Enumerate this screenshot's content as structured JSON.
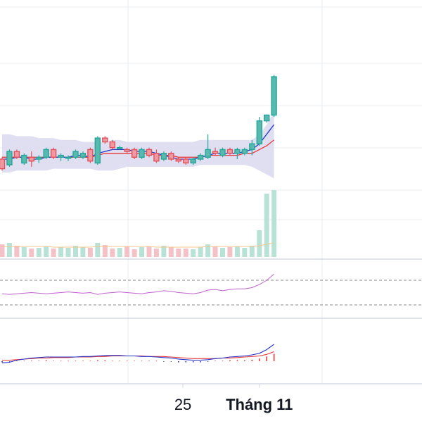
{
  "chart_data": {
    "type": "candlestick",
    "xaxis": {
      "tick_labels": [
        {
          "label": "25",
          "index": 24.6,
          "bold": false
        },
        {
          "label": "Tháng 11",
          "index": 35.0,
          "bold": true
        }
      ]
    },
    "price": {
      "ylim": [
        0,
        100
      ],
      "candles": [
        {
          "o": 50,
          "h": 51,
          "l": 44,
          "c": 45
        },
        {
          "o": 47,
          "h": 55,
          "l": 46,
          "c": 54
        },
        {
          "o": 54,
          "h": 55,
          "l": 50,
          "c": 51
        },
        {
          "o": 48,
          "h": 53,
          "l": 47,
          "c": 52
        },
        {
          "o": 51,
          "h": 54,
          "l": 46,
          "c": 49
        },
        {
          "o": 50,
          "h": 52,
          "l": 48,
          "c": 51
        },
        {
          "o": 51,
          "h": 56,
          "l": 50,
          "c": 55
        },
        {
          "o": 55,
          "h": 56,
          "l": 50,
          "c": 51
        },
        {
          "o": 51,
          "h": 53,
          "l": 49,
          "c": 52
        },
        {
          "o": 51,
          "h": 52,
          "l": 49,
          "c": 51
        },
        {
          "o": 51,
          "h": 55,
          "l": 50,
          "c": 54
        },
        {
          "o": 51,
          "h": 54,
          "l": 50,
          "c": 53
        },
        {
          "o": 55,
          "h": 56,
          "l": 48,
          "c": 49
        },
        {
          "o": 48,
          "h": 62,
          "l": 47,
          "c": 61
        },
        {
          "o": 61,
          "h": 62,
          "l": 58,
          "c": 59
        },
        {
          "o": 59,
          "h": 60,
          "l": 55,
          "c": 56
        },
        {
          "o": 56,
          "h": 57,
          "l": 55,
          "c": 56
        },
        {
          "o": 55,
          "h": 56,
          "l": 53,
          "c": 54
        },
        {
          "o": 55,
          "h": 56,
          "l": 50,
          "c": 51
        },
        {
          "o": 51,
          "h": 56,
          "l": 50,
          "c": 55
        },
        {
          "o": 55,
          "h": 56,
          "l": 51,
          "c": 52
        },
        {
          "o": 53,
          "h": 55,
          "l": 48,
          "c": 49
        },
        {
          "o": 50,
          "h": 54,
          "l": 49,
          "c": 53
        },
        {
          "o": 53,
          "h": 54,
          "l": 49,
          "c": 50
        },
        {
          "o": 50,
          "h": 51,
          "l": 48,
          "c": 49
        },
        {
          "o": 50,
          "h": 51,
          "l": 47,
          "c": 48
        },
        {
          "o": 48,
          "h": 51,
          "l": 47,
          "c": 50
        },
        {
          "o": 50,
          "h": 53,
          "l": 49,
          "c": 52
        },
        {
          "o": 51,
          "h": 63,
          "l": 50,
          "c": 55
        },
        {
          "o": 54,
          "h": 56,
          "l": 52,
          "c": 53
        },
        {
          "o": 52,
          "h": 56,
          "l": 51,
          "c": 55
        },
        {
          "o": 55,
          "h": 56,
          "l": 52,
          "c": 53
        },
        {
          "o": 53,
          "h": 56,
          "l": 50,
          "c": 55
        },
        {
          "o": 53,
          "h": 56,
          "l": 52,
          "c": 55
        },
        {
          "o": 55,
          "h": 60,
          "l": 52,
          "c": 58
        },
        {
          "o": 58,
          "h": 72,
          "l": 57,
          "c": 70
        },
        {
          "o": 70,
          "h": 73,
          "l": 69,
          "c": 73
        },
        {
          "o": 73,
          "h": 94,
          "l": 72,
          "c": 93
        }
      ],
      "ma_fast": [
        50,
        50,
        51,
        51,
        50,
        50,
        51,
        51,
        51,
        51,
        52,
        52,
        51,
        53,
        54,
        55,
        55,
        55,
        54,
        54,
        54,
        53,
        52,
        51,
        50,
        50,
        50,
        51,
        52,
        53,
        53,
        53,
        53,
        54,
        55,
        58,
        63,
        68
      ],
      "ma_slow": [
        51,
        51,
        51,
        51,
        51,
        51,
        51,
        51,
        51,
        51,
        51,
        51,
        51,
        52,
        53,
        53,
        53,
        53,
        53,
        53,
        53,
        52,
        52,
        52,
        51,
        51,
        51,
        51,
        52,
        52,
        52,
        52,
        52,
        53,
        53,
        55,
        57,
        60
      ],
      "bb_upper": [
        63,
        63,
        62,
        62,
        62,
        61,
        61,
        61,
        60,
        60,
        60,
        59,
        59,
        59,
        59,
        60,
        60,
        59,
        59,
        59,
        59,
        59,
        59,
        59,
        59,
        59,
        59,
        60,
        60,
        60,
        60,
        60,
        60,
        60,
        60,
        63,
        68,
        75
      ],
      "bb_lower": [
        43,
        43,
        44,
        44,
        44,
        44,
        44,
        45,
        45,
        45,
        45,
        45,
        45,
        44,
        44,
        44,
        45,
        46,
        46,
        46,
        46,
        46,
        46,
        46,
        46,
        46,
        46,
        47,
        47,
        47,
        47,
        47,
        47,
        47,
        46,
        44,
        42,
        40
      ]
    },
    "volume": {
      "values": [
        18,
        20,
        16,
        14,
        12,
        13,
        15,
        12,
        14,
        13,
        16,
        14,
        13,
        20,
        17,
        12,
        13,
        15,
        11,
        14,
        15,
        12,
        16,
        14,
        12,
        12,
        11,
        14,
        18,
        15,
        13,
        14,
        15,
        13,
        16,
        38,
        90,
        95
      ],
      "ma": [
        15,
        15,
        15,
        15,
        15,
        15,
        15,
        14,
        14,
        14,
        14,
        14,
        14,
        15,
        15,
        15,
        15,
        15,
        15,
        15,
        15,
        14,
        14,
        14,
        14,
        14,
        14,
        14,
        15,
        15,
        15,
        15,
        15,
        15,
        15,
        16,
        18,
        20
      ]
    },
    "rsi": {
      "ylim": [
        0,
        100
      ],
      "levels": [
        70,
        30
      ],
      "values": [
        48,
        47,
        48,
        49,
        50,
        49,
        48,
        49,
        50,
        51,
        50,
        49,
        50,
        47,
        49,
        50,
        51,
        50,
        49,
        48,
        50,
        51,
        53,
        52,
        50,
        49,
        48,
        50,
        54,
        55,
        53,
        55,
        56,
        56,
        58,
        63,
        70,
        80
      ]
    },
    "macd": {
      "macd": [
        -0.3,
        -0.2,
        0.2,
        0.4,
        0.6,
        0.7,
        0.8,
        0.8,
        0.8,
        0.8,
        0.8,
        0.9,
        0.9,
        1.0,
        1.1,
        1.1,
        1.1,
        1.0,
        1.0,
        0.9,
        0.9,
        0.8,
        0.7,
        0.6,
        0.4,
        0.3,
        0.2,
        0.2,
        0.3,
        0.5,
        0.6,
        0.8,
        0.9,
        1.0,
        1.2,
        1.5,
        2.2,
        3.2
      ],
      "signal": [
        0.2,
        0.2,
        0.3,
        0.4,
        0.5,
        0.6,
        0.6,
        0.7,
        0.7,
        0.7,
        0.8,
        0.8,
        0.8,
        0.9,
        0.9,
        1.0,
        1.0,
        1.0,
        1.0,
        1.0,
        0.9,
        0.9,
        0.9,
        0.8,
        0.7,
        0.6,
        0.5,
        0.5,
        0.5,
        0.5,
        0.6,
        0.6,
        0.7,
        0.8,
        0.9,
        1.0,
        1.3,
        1.8
      ],
      "hist": [
        -0.2,
        -0.1,
        0.1,
        0.1,
        0.1,
        0.1,
        0.2,
        0.1,
        0.1,
        0.1,
        0.1,
        0.1,
        0.1,
        0.2,
        0.2,
        0.1,
        0.1,
        0.1,
        0.1,
        0.1,
        0.1,
        0.1,
        -0.1,
        -0.1,
        -0.2,
        -0.2,
        -0.2,
        -0.2,
        -0.1,
        0.1,
        0.1,
        0.2,
        0.2,
        0.2,
        0.3,
        0.5,
        0.9,
        1.4
      ]
    }
  },
  "colors": {
    "up": "#26a69a",
    "up_fill": "#58b9ae",
    "down": "#e0505a",
    "down_fill": "#ef9aa2",
    "ma_fast": "#2233cc",
    "ma_slow": "#e83838",
    "bb_band": "#dcdcf0",
    "vol_up": "#b9e2d6",
    "vol_down": "#f4c2c6",
    "vol_ma": "#f5c68a",
    "rsi": "#c060d0",
    "rsi_levels": "#888888",
    "grid": "#e8ecf1",
    "divider": "#d5d8e6",
    "axis_text": "#131722"
  }
}
